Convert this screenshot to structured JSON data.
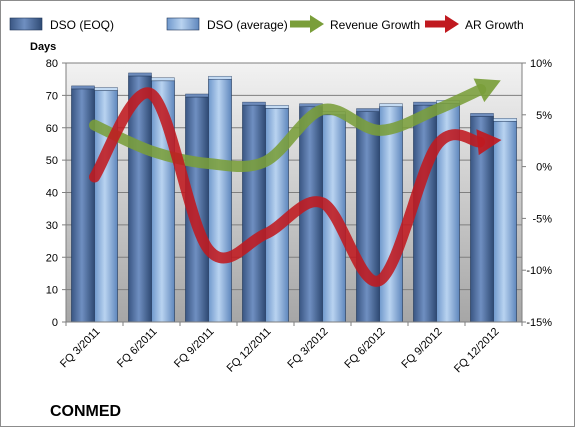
{
  "chart_data": {
    "type": "bar",
    "title": "",
    "company": "CONMED",
    "ylabel": "Days",
    "xlabel": "",
    "ylim": [
      0,
      80
    ],
    "y_ticks": [
      "0",
      "10",
      "20",
      "30",
      "40",
      "50",
      "60",
      "70",
      "80"
    ],
    "y2lim": [
      -15,
      10
    ],
    "y2_ticks": [
      "-15%",
      "-10%",
      "-5%",
      "0%",
      "5%",
      "10%"
    ],
    "grid": true,
    "legend_position": "top",
    "categories": [
      "FQ 3/2011",
      "FQ 6/2011",
      "FQ 9/2011",
      "FQ 12/2011",
      "FQ 3/2012",
      "FQ 6/2012",
      "FQ 9/2012",
      "FQ 12/2012"
    ],
    "series": [
      {
        "name": "DSO (EOQ)",
        "type": "bar",
        "axis": "left",
        "color": "#4f6c9b",
        "values": [
          72,
          76,
          69.5,
          67,
          66.5,
          65,
          67,
          63.5
        ]
      },
      {
        "name": "DSO (average)",
        "type": "bar",
        "axis": "left",
        "color": "#8fb4df",
        "values": [
          71.5,
          74.5,
          75,
          66,
          64,
          66.5,
          67.5,
          62
        ]
      },
      {
        "name": "Revenue Growth",
        "type": "arrow-line",
        "axis": "right",
        "color": "#7a9e3a",
        "values": [
          4,
          1.5,
          0.3,
          0.5,
          5.5,
          3.5,
          5.5,
          8
        ]
      },
      {
        "name": "AR Growth",
        "type": "arrow-line",
        "axis": "right",
        "color": "#c0191f",
        "values": [
          -1,
          7,
          -8,
          -6.5,
          -3.5,
          -11,
          2,
          2.5
        ]
      }
    ],
    "colors": {
      "plot_bg_top": "#f2f2f2",
      "plot_bg_bottom": "#a6a6a6",
      "grid": "#7f7f7f"
    }
  }
}
